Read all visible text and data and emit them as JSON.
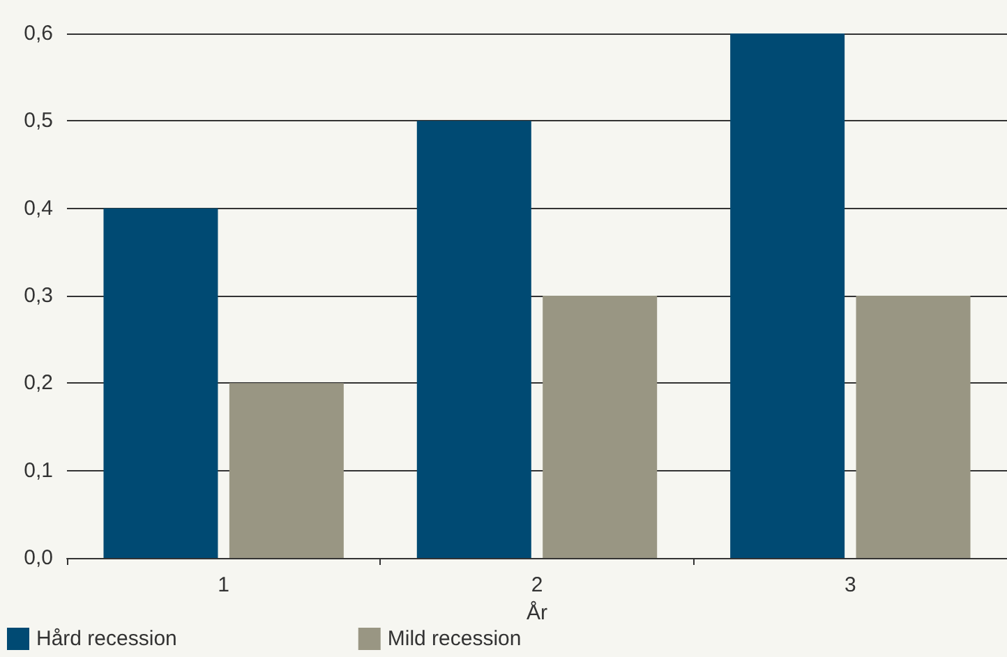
{
  "chart_data": {
    "type": "bar",
    "xlabel": "År",
    "categories": [
      "1",
      "2",
      "3"
    ],
    "series": [
      {
        "name": "Hård recession",
        "color": "#004a73",
        "values": [
          0.4,
          0.5,
          0.6
        ]
      },
      {
        "name": "Mild recession",
        "color": "#999683",
        "values": [
          0.2,
          0.3,
          0.3
        ]
      }
    ],
    "ylim": [
      0,
      0.6
    ],
    "yticks": [
      {
        "value": 0,
        "label": "0,0"
      },
      {
        "value": 0.1,
        "label": "0,1"
      },
      {
        "value": 0.2,
        "label": "0,2"
      },
      {
        "value": 0.3,
        "label": "0,3"
      },
      {
        "value": 0.4,
        "label": "0,4"
      },
      {
        "value": 0.5,
        "label": "0,5"
      },
      {
        "value": 0.6,
        "label": "0,6"
      }
    ],
    "grid": "y",
    "legend": "bottom left"
  }
}
